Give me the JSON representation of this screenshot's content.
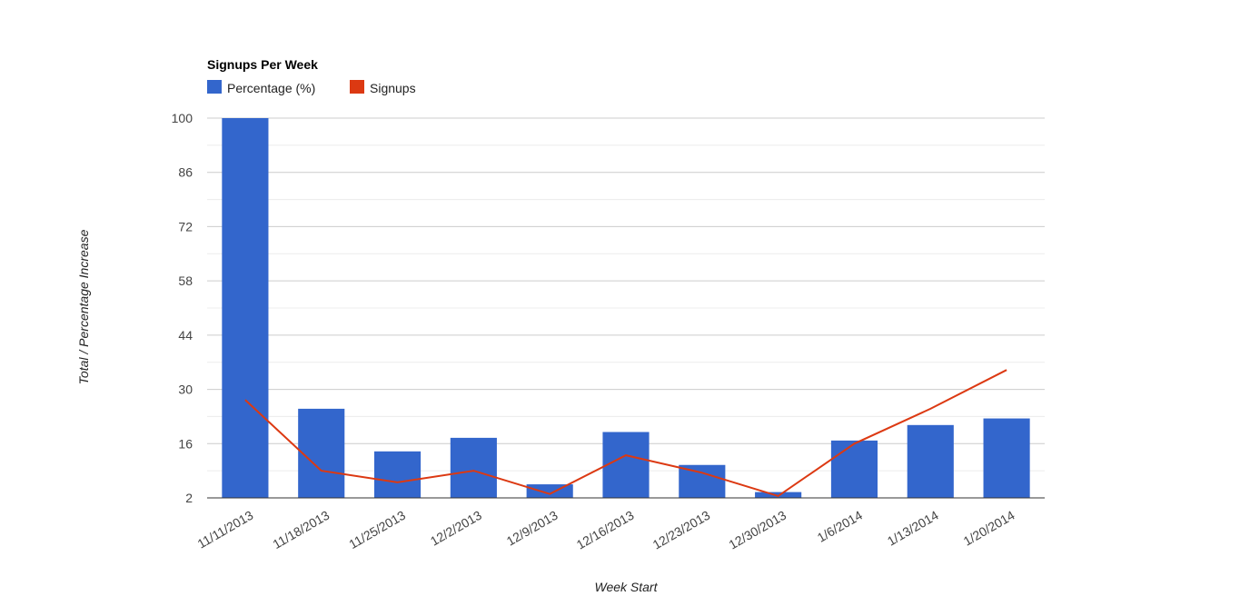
{
  "chart_data": {
    "type": "bar",
    "title": "Signups Per Week",
    "xlabel": "Week Start",
    "ylabel": "Total / Percentage Increase",
    "ylim": [
      2,
      100
    ],
    "yticks": [
      2,
      16,
      30,
      44,
      58,
      72,
      86,
      100
    ],
    "grid": true,
    "legend_placement": "top",
    "categories": [
      "11/11/2013",
      "11/18/2013",
      "11/25/2013",
      "12/2/2013",
      "12/9/2013",
      "12/16/2013",
      "12/23/2013",
      "12/30/2013",
      "1/6/2014",
      "1/13/2014",
      "1/20/2014"
    ],
    "series": [
      {
        "name": "Percentage (%)",
        "type": "bar",
        "color": "#3366cc",
        "values": [
          100,
          25,
          14,
          17.5,
          5.5,
          19,
          10.5,
          3.5,
          16.8,
          20.8,
          22.5
        ]
      },
      {
        "name": "Signups",
        "type": "line",
        "color": "#dc3912",
        "values": [
          27.3,
          9,
          6,
          9,
          3,
          13,
          8.5,
          2.5,
          16,
          25,
          35
        ]
      }
    ]
  }
}
